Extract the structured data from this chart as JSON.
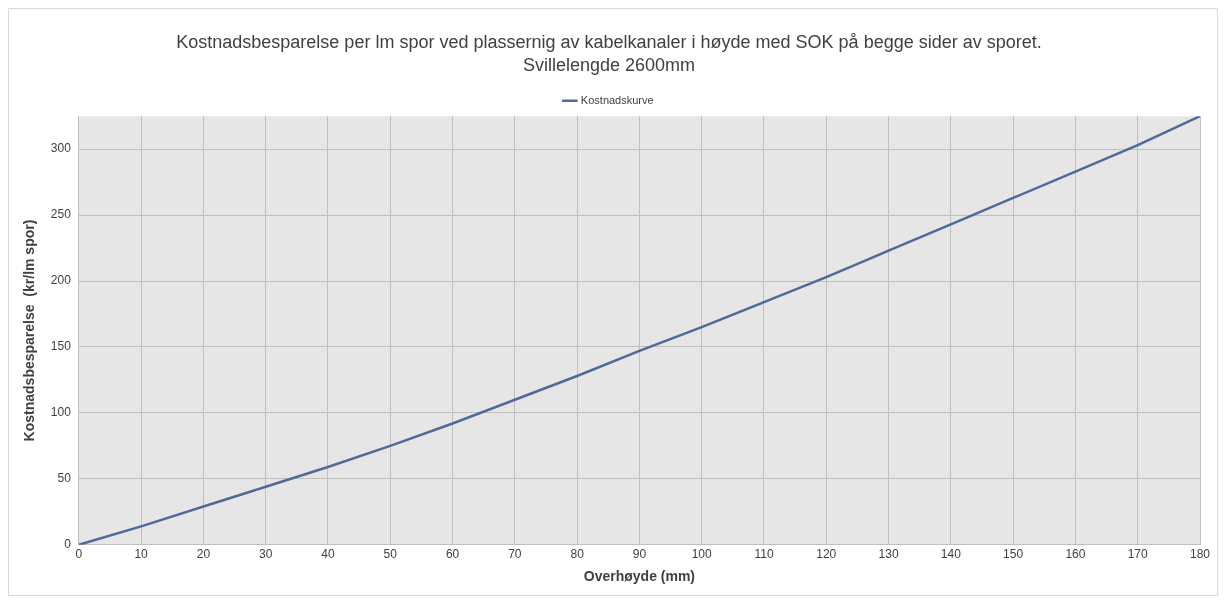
{
  "chart_data": {
    "type": "line",
    "title": "Kostnadsbesparelse per lm spor ved plassernig av kabelkanaler i høyde med SOK på begge sider av sporet.",
    "subtitle": "Svillelengde 2600mm",
    "xlabel": "Overhøyde (mm)",
    "ylabel": "Kostnadsbesparelse  (kr/lm spor)",
    "x": [
      0,
      10,
      20,
      30,
      40,
      50,
      60,
      70,
      80,
      90,
      100,
      110,
      120,
      130,
      140,
      150,
      160,
      170,
      180
    ],
    "series": [
      {
        "name": "Kostnadskurve",
        "color": "#4e6a9b",
        "values": [
          0,
          14,
          29,
          44,
          59,
          75,
          92,
          110,
          128,
          147,
          165,
          184,
          203,
          223,
          243,
          263,
          283,
          303,
          325
        ]
      }
    ],
    "xlim": [
      0,
      180
    ],
    "xticks": [
      0,
      10,
      20,
      30,
      40,
      50,
      60,
      70,
      80,
      90,
      100,
      110,
      120,
      130,
      140,
      150,
      160,
      170,
      180
    ],
    "ylim": [
      0,
      325
    ],
    "yticks": [
      0,
      50,
      100,
      150,
      200,
      250,
      300
    ],
    "grid": true,
    "legend": "top",
    "marker": "none",
    "line_style": "solid"
  }
}
